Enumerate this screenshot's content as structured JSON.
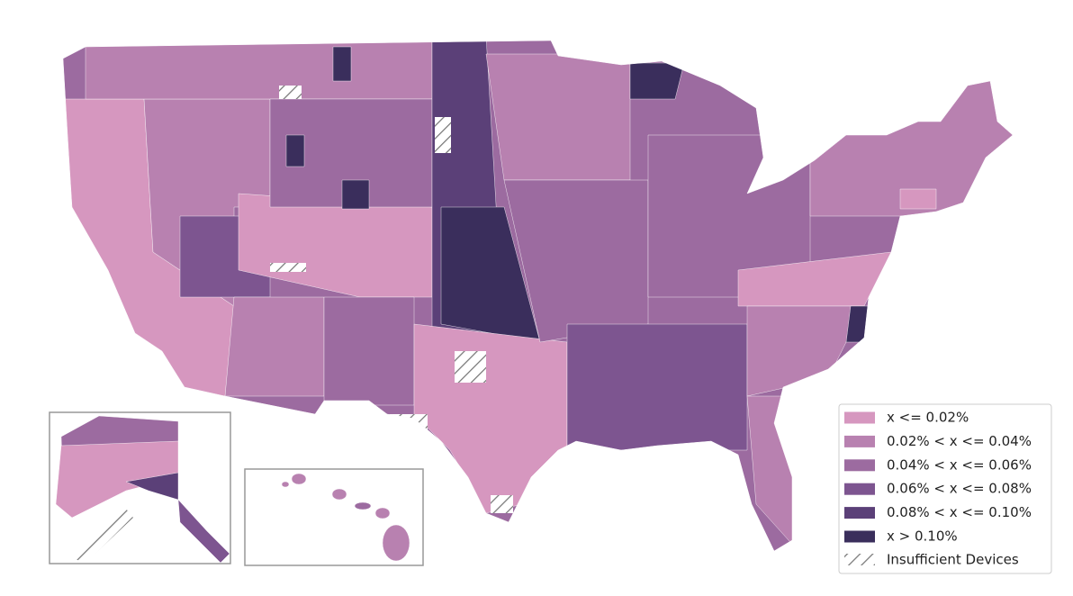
{
  "legend": {
    "items": [
      {
        "label": "x <= 0.02%",
        "color": "#d697bf"
      },
      {
        "label": "0.02% < x <= 0.04%",
        "color": "#b881b0"
      },
      {
        "label": "0.04% < x <= 0.06%",
        "color": "#9c6ba0"
      },
      {
        "label": "0.06% < x <= 0.08%",
        "color": "#7d5590"
      },
      {
        "label": "0.08% < x <= 0.10%",
        "color": "#5b4078"
      },
      {
        "label": "x > 0.10%",
        "color": "#3a2e5c"
      }
    ],
    "hatch_label": "Insufficient Devices",
    "hatch_color": "#777777"
  }
}
